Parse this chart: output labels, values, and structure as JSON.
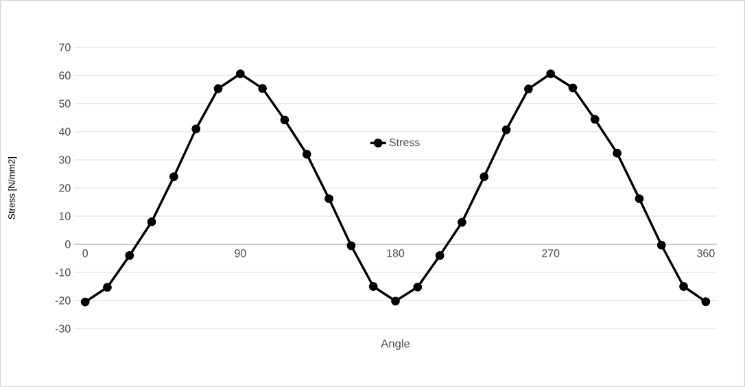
{
  "chart_data": {
    "type": "line",
    "xlabel": "Angle",
    "ylabel": "Stress [N/mm2]",
    "categories": [
      "0",
      null,
      null,
      null,
      null,
      null,
      null,
      "90",
      null,
      null,
      null,
      null,
      null,
      null,
      "180",
      null,
      null,
      null,
      null,
      null,
      null,
      "270",
      null,
      null,
      null,
      null,
      null,
      null,
      "360"
    ],
    "series": [
      {
        "name": "Stress",
        "color": "#000000",
        "values": [
          -20.5,
          -15.3,
          -4,
          8,
          24,
          41,
          55.3,
          60.6,
          55.4,
          44.2,
          32,
          16.2,
          -0.5,
          -15,
          -20.2,
          -15.2,
          -4,
          7.8,
          24,
          40.7,
          55.2,
          60.6,
          55.6,
          44.4,
          32.4,
          16.2,
          -0.3,
          -15,
          -20.4
        ]
      }
    ],
    "ylim": [
      -30,
      70
    ],
    "yticks": [
      -30,
      -20,
      -10,
      0,
      10,
      20,
      30,
      40,
      50,
      60,
      70
    ],
    "grid": "y",
    "legend": "center",
    "marker": "circle",
    "line_style": "solid"
  }
}
